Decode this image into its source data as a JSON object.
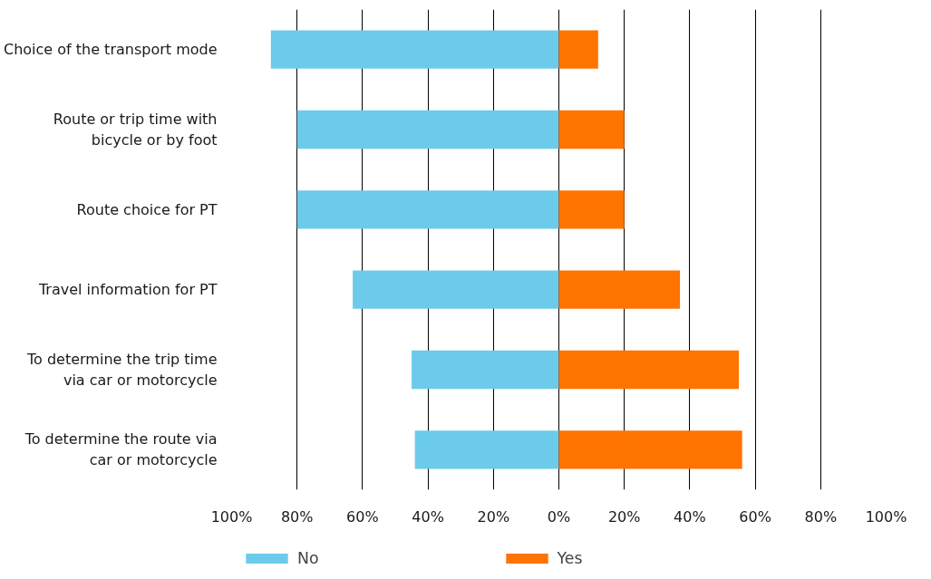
{
  "chart_data": {
    "type": "bar",
    "orientation": "horizontal",
    "stacked": true,
    "categories": [
      "Choice of the transport mode",
      "Route or trip time with\nbicycle or by foot",
      "Route choice for PT",
      "Travel information for PT",
      "To determine the trip time\nvia car or motorcycle",
      "To determine the route via\ncar or motorcycle"
    ],
    "series": [
      {
        "name": "No",
        "color": "#6ccbea",
        "values": [
          -88,
          -80,
          -80,
          -63,
          -45,
          -44
        ]
      },
      {
        "name": "Yes",
        "color": "#ff7300",
        "values": [
          12,
          20,
          20,
          37,
          55,
          56
        ]
      }
    ],
    "xlim": [
      -100,
      100
    ],
    "xticks": [
      {
        "value": -100,
        "label": "100%"
      },
      {
        "value": -80,
        "label": "80%"
      },
      {
        "value": -60,
        "label": "60%"
      },
      {
        "value": -40,
        "label": "40%"
      },
      {
        "value": -20,
        "label": "20%"
      },
      {
        "value": 0,
        "label": "0%"
      },
      {
        "value": 20,
        "label": "20%"
      },
      {
        "value": 40,
        "label": "40%"
      },
      {
        "value": 60,
        "label": "60%"
      },
      {
        "value": 80,
        "label": "80%"
      },
      {
        "value": 100,
        "label": "100%"
      }
    ],
    "grid": "x",
    "legend": "bottom"
  }
}
